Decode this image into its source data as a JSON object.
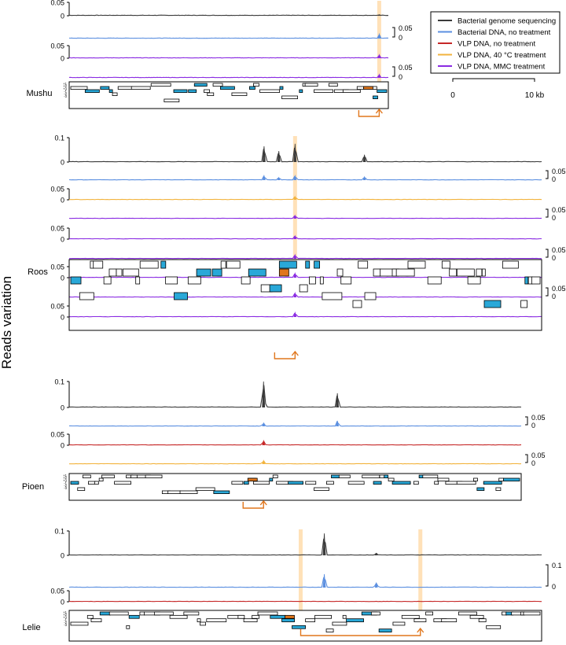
{
  "figure": {
    "ylabel": "Reads variation"
  },
  "legend": {
    "items": [
      {
        "label": "Bacterial genome sequencing",
        "color": "#3a3a3a"
      },
      {
        "label": "Bacterial DNA, no treatment",
        "color": "#5b8fe0"
      },
      {
        "label": "VLP DNA, no treatment",
        "color": "#c62828"
      },
      {
        "label": "VLP DNA, 40 °C treatment",
        "color": "#f2b33d"
      },
      {
        "label": "VLP DNA, MMC treatment",
        "color": "#8a2be2"
      }
    ]
  },
  "scalebar": {
    "start_label": "0",
    "end_label": "10 kb",
    "length_kb": 10
  },
  "colors": {
    "highlight": "#ffd9a6",
    "gene_fill": "#29a8d8",
    "gene_special": "#e0761c",
    "arrow": "#e0761c",
    "gene_stroke": "#000000"
  },
  "chart_data": [
    {
      "type": "line",
      "genome": "Mushu",
      "length_kb": 21,
      "tracks": [
        {
          "series": "Bacterial genome sequencing",
          "ymax": 0.05,
          "ticks": [
            "0.05",
            "0"
          ],
          "peaks": [
            {
              "x_kb": 20.4,
              "value": 0.004
            }
          ]
        },
        {
          "series": "Bacterial DNA, no treatment",
          "ymax": 0.05,
          "scalebar_labels": [
            "0.05",
            "0"
          ],
          "peaks": [
            {
              "x_kb": 20.4,
              "value": 0.018
            }
          ]
        },
        {
          "series": "VLP DNA, MMC treatment",
          "ymax": 0.05,
          "ticks": [
            "0.05",
            "0"
          ],
          "peaks": [
            {
              "x_kb": 20.4,
              "value": 0.014
            }
          ]
        },
        {
          "series": "VLP DNA, MMC treatment",
          "ymax": 0.05,
          "scalebar_labels": [
            "0.05",
            "0"
          ],
          "peaks": [
            {
              "x_kb": 20.4,
              "value": 0.014
            }
          ]
        }
      ],
      "highlights_kb": [
        20.4
      ],
      "gene_frame_labels": [
        "+1",
        "+2",
        "+3",
        "-1",
        "-2",
        "-3"
      ]
    },
    {
      "type": "line",
      "genome": "Roos",
      "length_kb": 32,
      "tracks": [
        {
          "series": "Bacterial genome sequencing",
          "ymax": 0.1,
          "ticks": [
            "0.1",
            "0"
          ],
          "peaks": [
            {
              "x_kb": 13.2,
              "value": 0.065
            },
            {
              "x_kb": 14.2,
              "value": 0.045
            },
            {
              "x_kb": 15.3,
              "value": 0.075
            },
            {
              "x_kb": 20.0,
              "value": 0.03
            }
          ]
        },
        {
          "series": "Bacterial DNA, no treatment",
          "ymax": 0.05,
          "scalebar_labels": [
            "0.05",
            "0"
          ],
          "peaks": [
            {
              "x_kb": 13.2,
              "value": 0.02
            },
            {
              "x_kb": 14.2,
              "value": 0.012
            },
            {
              "x_kb": 15.3,
              "value": 0.02
            },
            {
              "x_kb": 20.0,
              "value": 0.015
            }
          ]
        },
        {
          "series": "VLP DNA, 40 °C treatment",
          "ymax": 0.05,
          "ticks": [
            "0.05",
            "0"
          ],
          "peaks": [
            {
              "x_kb": 15.3,
              "value": 0.015
            }
          ]
        },
        {
          "series": "VLP DNA, MMC treatment",
          "ymax": 0.05,
          "scalebar_labels": [
            "0.05",
            "0"
          ],
          "peaks": [
            {
              "x_kb": 15.3,
              "value": 0.015
            }
          ]
        },
        {
          "series": "VLP DNA, MMC treatment",
          "ymax": 0.05,
          "ticks": [
            "0.05",
            "0"
          ],
          "peaks": [
            {
              "x_kb": 15.3,
              "value": 0.015
            }
          ]
        },
        {
          "series": "VLP DNA, MMC treatment",
          "ymax": 0.05,
          "scalebar_labels": [
            "0.05",
            "0"
          ],
          "peaks": [
            {
              "x_kb": 15.3,
              "value": 0.018
            }
          ]
        },
        {
          "series": "VLP DNA, MMC treatment",
          "ymax": 0.05,
          "ticks": [
            "0.05",
            "0"
          ],
          "peaks": [
            {
              "x_kb": 15.3,
              "value": 0.02
            }
          ]
        },
        {
          "series": "VLP DNA, MMC treatment",
          "ymax": 0.05,
          "scalebar_labels": [
            "0.05",
            "0"
          ],
          "peaks": [
            {
              "x_kb": 15.3,
              "value": 0.02
            }
          ]
        },
        {
          "series": "VLP DNA, MMC treatment",
          "ymax": 0.05,
          "ticks": [
            "0.05",
            "0"
          ],
          "peaks": [
            {
              "x_kb": 15.3,
              "value": 0.02
            }
          ]
        }
      ],
      "highlights_kb": [
        15.3
      ],
      "gene_frame_labels": []
    },
    {
      "type": "line",
      "genome": "Pioen",
      "length_kb": 30,
      "tracks": [
        {
          "series": "Bacterial genome sequencing",
          "ymax": 0.1,
          "ticks": [
            "0.1",
            "0"
          ],
          "peaks": [
            {
              "x_kb": 12.9,
              "value": 0.1
            },
            {
              "x_kb": 17.8,
              "value": 0.055
            }
          ]
        },
        {
          "series": "Bacterial DNA, no treatment",
          "ymax": 0.05,
          "scalebar_labels": [
            "0.05",
            "0"
          ],
          "peaks": [
            {
              "x_kb": 12.9,
              "value": 0.015
            },
            {
              "x_kb": 17.8,
              "value": 0.025
            }
          ]
        },
        {
          "series": "VLP DNA, no treatment",
          "ymax": 0.05,
          "ticks": [
            "0.05",
            "0"
          ],
          "peaks": [
            {
              "x_kb": 12.9,
              "value": 0.02
            }
          ]
        },
        {
          "series": "VLP DNA, 40 °C treatment",
          "ymax": 0.05,
          "scalebar_labels": [
            "0.05",
            "0"
          ],
          "peaks": [
            {
              "x_kb": 12.9,
              "value": 0.016
            }
          ]
        }
      ],
      "highlights_kb": [],
      "gene_frame_labels": [
        "+1",
        "+2",
        "+3",
        "-1",
        "-2",
        "-3"
      ]
    },
    {
      "type": "line",
      "genome": "Lelie",
      "length_kb": 30,
      "tracks": [
        {
          "series": "Bacterial genome sequencing",
          "ymax": 0.1,
          "ticks": [
            "0.1",
            "0"
          ],
          "peaks": [
            {
              "x_kb": 16.2,
              "value": 0.09
            },
            {
              "x_kb": 19.5,
              "value": 0.008
            }
          ]
        },
        {
          "series": "Bacterial DNA, no treatment",
          "ymax": 0.1,
          "scalebar_labels": [
            "0.1",
            "0"
          ],
          "peaks": [
            {
              "x_kb": 16.2,
              "value": 0.055
            },
            {
              "x_kb": 19.5,
              "value": 0.018
            }
          ]
        },
        {
          "series": "VLP DNA, no treatment",
          "ymax": 0.05,
          "ticks": [
            "0.05",
            "0"
          ],
          "peaks": []
        }
      ],
      "highlights_kb": [
        14.7,
        22.3
      ],
      "gene_frame_labels": [
        "+1",
        "+2",
        "+3",
        "-1",
        "-2",
        "-3"
      ]
    }
  ]
}
